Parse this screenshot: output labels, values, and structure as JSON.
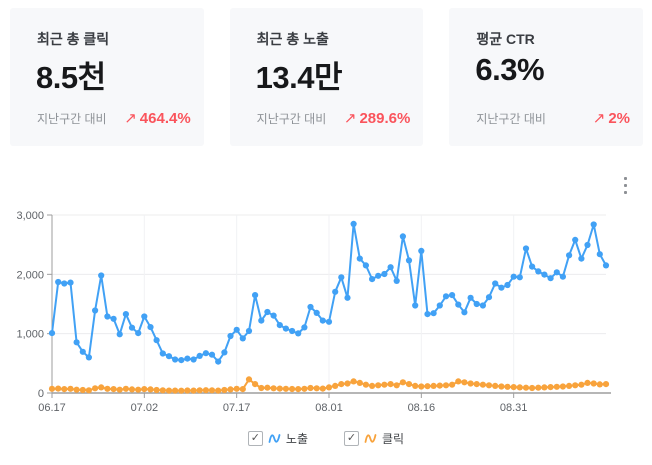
{
  "cards": [
    {
      "title": "최근 총 클릭",
      "value": "8.5천",
      "compare_label": "지난구간 대비",
      "arrow": "↗",
      "change": "464.4%"
    },
    {
      "title": "최근 총 노출",
      "value": "13.4만",
      "compare_label": "지난구간 대비",
      "arrow": "↗",
      "change": "289.6%"
    },
    {
      "title": "평균 CTR",
      "value": "6.3%",
      "compare_label": "지난구간 대비",
      "arrow": "↗",
      "change": "2%"
    }
  ],
  "icons": {
    "menu": "kebab-menu-icon",
    "trend_up_arrow": "↗",
    "checkbox_check": "✓",
    "legend_marker": "line-squiggle-icon"
  },
  "colors": {
    "card_bg": "#f7f8fa",
    "change_red": "#fa545c",
    "series_blue": "#41a1f5",
    "series_orange": "#f8a33c",
    "axis_text": "#5f6368",
    "axis_line": "#9e9e9e",
    "grid_line": "#ececee"
  },
  "chart_data": {
    "type": "line",
    "title": "",
    "xlabel": "",
    "ylabel": "",
    "ylim": [
      0,
      3000
    ],
    "grid": true,
    "legend_position": "bottom",
    "ytick_values": [
      0,
      1000,
      2000,
      3000
    ],
    "ytick_labels": [
      "0",
      "1,000",
      "2,000",
      "3,000"
    ],
    "tick_labels": [
      "06.17",
      "07.02",
      "07.17",
      "08.01",
      "08.16",
      "08.31"
    ],
    "tick_indices": [
      0,
      15,
      30,
      45,
      60,
      75
    ],
    "series": [
      {
        "name": "노출",
        "color": "#41a1f5",
        "checked": true,
        "values": [
          1010,
          1870,
          1845,
          1860,
          855,
          695,
          600,
          1390,
          1980,
          1290,
          1250,
          990,
          1330,
          1100,
          1010,
          1290,
          1110,
          890,
          665,
          620,
          565,
          555,
          580,
          565,
          625,
          670,
          645,
          530,
          685,
          960,
          1065,
          920,
          1045,
          1650,
          1220,
          1365,
          1305,
          1145,
          1085,
          1045,
          1005,
          1105,
          1450,
          1350,
          1220,
          1200,
          1705,
          1950,
          1605,
          2850,
          2265,
          2150,
          1920,
          1975,
          2005,
          2120,
          1890,
          2640,
          2235,
          1475,
          2395,
          1330,
          1345,
          1475,
          1630,
          1650,
          1490,
          1360,
          1605,
          1500,
          1475,
          1615,
          1845,
          1775,
          1820,
          1960,
          1950,
          2435,
          2130,
          2050,
          1995,
          1935,
          2035,
          1960,
          2320,
          2580,
          2265,
          2495,
          2840,
          2340,
          2150
        ]
      },
      {
        "name": "클릭",
        "color": "#f8a33c",
        "checked": true,
        "values": [
          70,
          75,
          65,
          70,
          55,
          50,
          45,
          80,
          95,
          70,
          65,
          55,
          70,
          60,
          55,
          65,
          60,
          50,
          45,
          40,
          40,
          38,
          42,
          40,
          45,
          48,
          45,
          40,
          50,
          60,
          70,
          65,
          230,
          150,
          85,
          90,
          80,
          75,
          70,
          68,
          65,
          70,
          85,
          80,
          75,
          95,
          120,
          150,
          160,
          195,
          170,
          140,
          120,
          130,
          140,
          150,
          130,
          180,
          150,
          120,
          110,
          115,
          120,
          125,
          130,
          140,
          195,
          180,
          160,
          150,
          140,
          130,
          120,
          110,
          105,
          100,
          95,
          90,
          85,
          90,
          95,
          100,
          105,
          110,
          120,
          130,
          140,
          170,
          160,
          145,
          150
        ]
      }
    ]
  }
}
